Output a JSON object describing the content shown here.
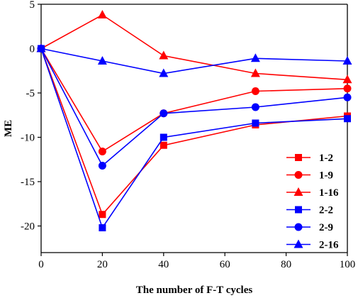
{
  "chart_data": {
    "type": "line",
    "title": "",
    "xlabel": "The number of F-T cycles",
    "ylabel": "ME",
    "xlim": [
      0,
      100
    ],
    "ylim": [
      -23,
      5
    ],
    "xticks": [
      0,
      20,
      40,
      60,
      80,
      100
    ],
    "yticks": [
      5,
      0,
      -5,
      -10,
      -15,
      -20
    ],
    "grid": false,
    "legend_position": "lower-right",
    "x": [
      0,
      20,
      40,
      70,
      100
    ],
    "series": [
      {
        "name": "1-2",
        "color": "#ff0000",
        "marker": "square",
        "values": [
          0,
          -18.7,
          -10.9,
          -8.6,
          -7.6
        ]
      },
      {
        "name": "1-9",
        "color": "#ff0000",
        "marker": "circle",
        "values": [
          0,
          -11.6,
          -7.3,
          -4.8,
          -4.5
        ]
      },
      {
        "name": "1-16",
        "color": "#ff0000",
        "marker": "triangle",
        "values": [
          0,
          3.8,
          -0.8,
          -2.8,
          -3.5
        ]
      },
      {
        "name": "2-2",
        "color": "#0000ff",
        "marker": "square",
        "values": [
          0,
          -20.2,
          -10.0,
          -8.4,
          -7.9
        ]
      },
      {
        "name": "2-9",
        "color": "#0000ff",
        "marker": "circle",
        "values": [
          0,
          -13.2,
          -7.3,
          -6.6,
          -5.5
        ]
      },
      {
        "name": "2-16",
        "color": "#0000ff",
        "marker": "triangle",
        "values": [
          0,
          -1.4,
          -2.8,
          -1.1,
          -1.4
        ]
      }
    ]
  }
}
